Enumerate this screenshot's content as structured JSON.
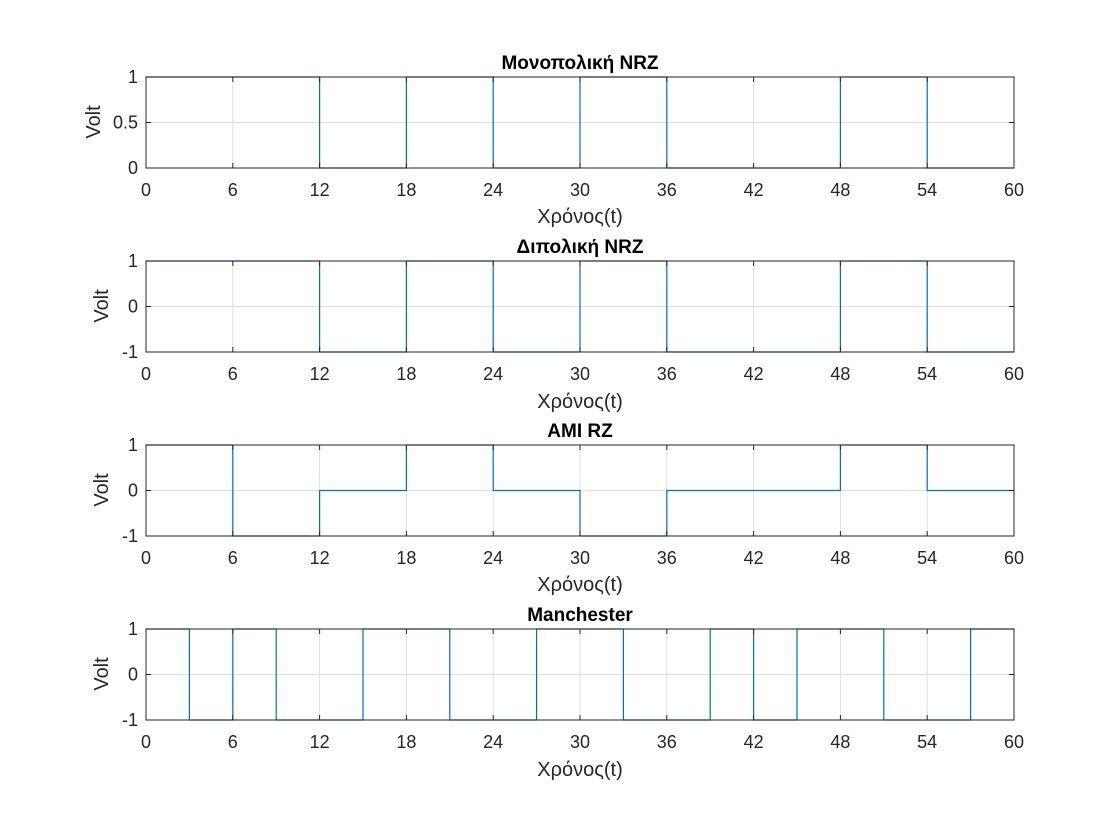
{
  "colors": {
    "line": "#0072BD",
    "grid": "#DFDFDF",
    "axis": "#262626",
    "background": "#FFFFFF"
  },
  "chart_data": [
    {
      "type": "line",
      "title": "Μονοπολική NRZ",
      "xlabel": "Χρόνος(t)",
      "ylabel": "Volt",
      "xlim": [
        0,
        60
      ],
      "ylim": [
        0,
        1
      ],
      "xticks": [
        0,
        6,
        12,
        18,
        24,
        30,
        36,
        42,
        48,
        54,
        60
      ],
      "yticks": [
        0,
        0.5,
        1
      ],
      "grid": true,
      "step": true,
      "x": [
        0,
        6,
        12,
        18,
        24,
        30,
        36,
        42,
        48,
        54,
        60
      ],
      "y": [
        1,
        1,
        0,
        1,
        0,
        1,
        0,
        0,
        1,
        0,
        0
      ]
    },
    {
      "type": "line",
      "title": "Διπολική NRZ",
      "xlabel": "Χρόνος(t)",
      "ylabel": "Volt",
      "xlim": [
        0,
        60
      ],
      "ylim": [
        -1,
        1
      ],
      "xticks": [
        0,
        6,
        12,
        18,
        24,
        30,
        36,
        42,
        48,
        54,
        60
      ],
      "yticks": [
        -1,
        0,
        1
      ],
      "grid": true,
      "step": true,
      "x": [
        0,
        6,
        12,
        18,
        24,
        30,
        36,
        42,
        48,
        54,
        60
      ],
      "y": [
        1,
        1,
        -1,
        1,
        -1,
        1,
        -1,
        -1,
        1,
        -1,
        -1
      ]
    },
    {
      "type": "line",
      "title": "AMI RZ",
      "xlabel": "Χρόνος(t)",
      "ylabel": "Volt",
      "xlim": [
        0,
        60
      ],
      "ylim": [
        -1,
        1
      ],
      "xticks": [
        0,
        6,
        12,
        18,
        24,
        30,
        36,
        42,
        48,
        54,
        60
      ],
      "yticks": [
        -1,
        0,
        1
      ],
      "grid": true,
      "step": true,
      "x": [
        0,
        6,
        12,
        18,
        24,
        30,
        36,
        42,
        48,
        54,
        60
      ],
      "y": [
        1,
        -1,
        0,
        1,
        0,
        -1,
        0,
        0,
        1,
        0,
        0
      ]
    },
    {
      "type": "line",
      "title": "Manchester",
      "xlabel": "Χρόνος(t)",
      "ylabel": "Volt",
      "xlim": [
        0,
        60
      ],
      "ylim": [
        -1,
        1
      ],
      "xticks": [
        0,
        6,
        12,
        18,
        24,
        30,
        36,
        42,
        48,
        54,
        60
      ],
      "yticks": [
        -1,
        0,
        1
      ],
      "grid": true,
      "step": true,
      "x": [
        0,
        3,
        6,
        9,
        12,
        15,
        18,
        21,
        24,
        27,
        30,
        33,
        36,
        39,
        42,
        45,
        48,
        51,
        54,
        57,
        60
      ],
      "y": [
        1,
        -1,
        1,
        -1,
        -1,
        1,
        1,
        -1,
        -1,
        1,
        1,
        -1,
        -1,
        1,
        -1,
        1,
        1,
        -1,
        -1,
        1,
        1
      ]
    }
  ]
}
